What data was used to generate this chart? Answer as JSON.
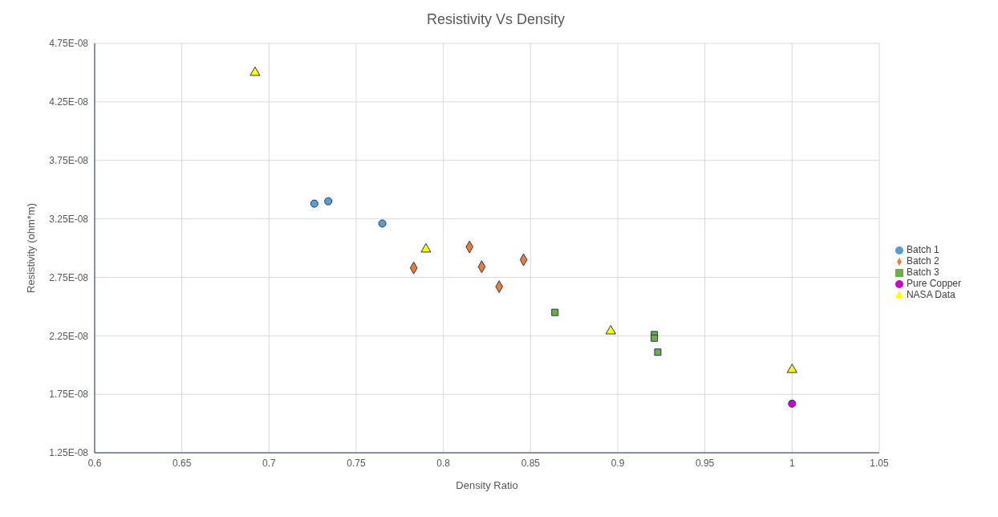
{
  "chart_data": {
    "type": "scatter",
    "title": "Resistivity Vs Density",
    "xlabel": "Density Ratio",
    "ylabel": "Resistivity (ohm*m)",
    "xlim": [
      0.6,
      1.05
    ],
    "xticks": [
      0.6,
      0.65,
      0.7,
      0.75,
      0.8,
      0.85,
      0.9,
      0.95,
      1,
      1.05
    ],
    "ylim": [
      1.25e-08,
      4.75e-08
    ],
    "yticks": [
      {
        "value": 1.25e-08,
        "label": "1.25E-08"
      },
      {
        "value": 1.75e-08,
        "label": "1.75E-08"
      },
      {
        "value": 2.25e-08,
        "label": "2.25E-08"
      },
      {
        "value": 2.75e-08,
        "label": "2.75E-08"
      },
      {
        "value": 3.25e-08,
        "label": "3.25E-08"
      },
      {
        "value": 3.75e-08,
        "label": "3.75E-08"
      },
      {
        "value": 4.25e-08,
        "label": "4.25E-08"
      },
      {
        "value": 4.75e-08,
        "label": "4.75E-08"
      }
    ],
    "grid": true,
    "legend": "right",
    "series": [
      {
        "name": "Batch 1",
        "color": "#5b9bd5",
        "marker": "circle",
        "x": [
          0.726,
          0.734,
          0.765
        ],
        "values": [
          3.38e-08,
          3.4e-08,
          3.21e-08
        ]
      },
      {
        "name": "Batch 2",
        "color": "#ed7d31",
        "marker": "diamond",
        "x": [
          0.783,
          0.815,
          0.822,
          0.832,
          0.846
        ],
        "values": [
          2.83e-08,
          3.01e-08,
          2.84e-08,
          2.67e-08,
          2.9e-08
        ]
      },
      {
        "name": "Batch 3",
        "color": "#70ad47",
        "marker": "square",
        "x": [
          0.864,
          0.921,
          0.921,
          0.923
        ],
        "values": [
          2.45e-08,
          2.26e-08,
          2.23e-08,
          2.11e-08
        ]
      },
      {
        "name": "Pure Copper",
        "color": "#cc00cc",
        "marker": "circle",
        "x": [
          1.0
        ],
        "values": [
          1.67e-08
        ]
      },
      {
        "name": "NASA Data",
        "color": "#ffff00",
        "marker": "triangle",
        "x": [
          0.692,
          0.79,
          0.896,
          1.0
        ],
        "values": [
          4.5e-08,
          2.99e-08,
          2.29e-08,
          1.96e-08
        ]
      }
    ]
  }
}
